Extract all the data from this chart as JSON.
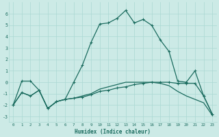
{
  "x": [
    0,
    1,
    2,
    3,
    4,
    5,
    6,
    7,
    8,
    9,
    10,
    11,
    12,
    13,
    14,
    15,
    16,
    17,
    18,
    19,
    20,
    21,
    22,
    23
  ],
  "line1": [
    -2.0,
    0.1,
    0.1,
    -0.7,
    -2.3,
    -1.7,
    -1.5,
    0.0,
    1.5,
    3.5,
    5.1,
    5.2,
    5.6,
    6.3,
    5.2,
    5.5,
    5.0,
    3.7,
    2.7,
    0.1,
    0.0,
    1.0,
    -1.2,
    -2.8
  ],
  "line2": [
    -2.0,
    -0.9,
    -1.2,
    -0.7,
    -2.3,
    -1.7,
    -1.5,
    -1.4,
    -1.3,
    -1.1,
    -0.8,
    -0.7,
    -0.5,
    -0.4,
    -0.2,
    -0.1,
    0.0,
    0.0,
    0.0,
    -0.1,
    -0.1,
    -0.1,
    -1.2,
    -2.8
  ],
  "line3": [
    -2.0,
    -0.9,
    -1.2,
    -0.7,
    -2.3,
    -1.7,
    -1.5,
    -1.4,
    -1.2,
    -1.0,
    -0.6,
    -0.4,
    -0.2,
    0.0,
    0.0,
    0.0,
    0.0,
    -0.1,
    -0.3,
    -0.8,
    -1.2,
    -1.5,
    -1.8,
    -2.9
  ],
  "line_color": "#1a6b5e",
  "bg_color": "#cceae6",
  "grid_color": "#aad8d3",
  "xlabel": "Humidex (Indice chaleur)",
  "xlim": [
    -0.5,
    23.5
  ],
  "ylim": [
    -3.5,
    7.0
  ],
  "yticks": [
    -3,
    -2,
    -1,
    0,
    1,
    2,
    3,
    4,
    5,
    6
  ],
  "xticks": [
    0,
    1,
    2,
    3,
    4,
    5,
    6,
    7,
    8,
    9,
    10,
    11,
    12,
    13,
    14,
    15,
    16,
    17,
    18,
    19,
    20,
    21,
    22,
    23
  ],
  "marker": "+"
}
